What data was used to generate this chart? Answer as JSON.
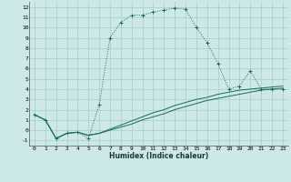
{
  "xlabel": "Humidex (Indice chaleur)",
  "bg_color": "#cce8e8",
  "grid_color": "#aacccc",
  "line_color": "#1a6b5a",
  "xlim": [
    -0.5,
    23.5
  ],
  "ylim": [
    -1.5,
    12.5
  ],
  "xticks": [
    0,
    1,
    2,
    3,
    4,
    5,
    6,
    7,
    8,
    9,
    10,
    11,
    12,
    13,
    14,
    15,
    16,
    17,
    18,
    19,
    20,
    21,
    22,
    23
  ],
  "yticks": [
    -1,
    0,
    1,
    2,
    3,
    4,
    5,
    6,
    7,
    8,
    9,
    10,
    11,
    12
  ],
  "line1_x": [
    0,
    1,
    2,
    3,
    4,
    5,
    6,
    7,
    8,
    9,
    10,
    11,
    12,
    13,
    14,
    15,
    16,
    17,
    18,
    19,
    20,
    21,
    22,
    23
  ],
  "line1_y": [
    1.5,
    1.0,
    -0.8,
    -0.3,
    -0.2,
    -0.8,
    2.5,
    9.0,
    10.5,
    11.2,
    11.2,
    11.5,
    11.7,
    11.9,
    11.8,
    10.0,
    8.5,
    6.5,
    4.0,
    4.3,
    5.8,
    4.0,
    4.0,
    4.0
  ],
  "line2_x": [
    0,
    1,
    2,
    3,
    4,
    5,
    6,
    7,
    8,
    9,
    10,
    11,
    12,
    13,
    14,
    15,
    16,
    17,
    18,
    19,
    20,
    21,
    22,
    23
  ],
  "line2_y": [
    1.5,
    1.0,
    -0.8,
    -0.3,
    -0.2,
    -0.5,
    -0.3,
    0.0,
    0.3,
    0.6,
    1.0,
    1.3,
    1.6,
    2.0,
    2.3,
    2.6,
    2.9,
    3.1,
    3.3,
    3.5,
    3.7,
    3.9,
    4.0,
    4.1
  ],
  "line3_x": [
    0,
    1,
    2,
    3,
    4,
    5,
    6,
    7,
    8,
    9,
    10,
    11,
    12,
    13,
    14,
    15,
    16,
    17,
    18,
    19,
    20,
    21,
    22,
    23
  ],
  "line3_y": [
    1.5,
    1.0,
    -0.8,
    -0.3,
    -0.2,
    -0.5,
    -0.3,
    0.1,
    0.5,
    0.9,
    1.3,
    1.7,
    2.0,
    2.4,
    2.7,
    3.0,
    3.2,
    3.5,
    3.7,
    3.9,
    4.0,
    4.1,
    4.2,
    4.3
  ]
}
